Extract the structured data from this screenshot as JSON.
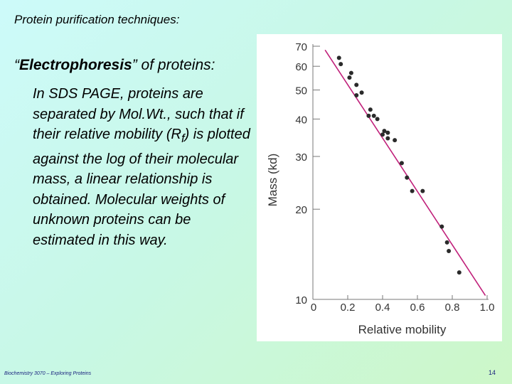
{
  "slide": {
    "title": "Protein purification techniques:",
    "heading_bold": "Electrophoresis",
    "heading_open_quote": "“",
    "heading_rest": "” of proteins:",
    "body_part1": "In SDS PAGE, proteins are separated by Mol.Wt., such that if their relative mobility (R",
    "body_subscript": "f",
    "body_part2": ") is plotted against the log of their molecular mass, a linear relationship is obtained.  Molecular weights of unknown proteins can be estimated in this way.",
    "footer_left": "Biochemistry 3070 – Exploring Proteins",
    "page_number": "14"
  },
  "colors": {
    "accent_line": "#c0207a",
    "points": "#2a2a2a",
    "axis_text": "#333333"
  },
  "chart_data": {
    "type": "scatter",
    "title": "",
    "xlabel": "Relative mobility",
    "ylabel": "Mass (kd)",
    "xlim": [
      0,
      1.0
    ],
    "ylim": [
      10,
      70
    ],
    "y_scale": "log",
    "x_tick_labels": [
      "0",
      "0.2",
      "0.4",
      "0.6",
      "0.8",
      "1.0"
    ],
    "x_ticks": [
      0,
      0.2,
      0.4,
      0.6,
      0.8,
      1.0
    ],
    "y_tick_labels": [
      "10",
      "20",
      "30",
      "40",
      "50",
      "60",
      "70"
    ],
    "y_ticks": [
      10,
      20,
      30,
      40,
      50,
      60,
      70
    ],
    "grid": false,
    "fit_line": {
      "x": [
        0.07,
        0.99
      ],
      "y": [
        68,
        10.3
      ]
    },
    "points": [
      {
        "x": 0.15,
        "y": 64
      },
      {
        "x": 0.16,
        "y": 61
      },
      {
        "x": 0.21,
        "y": 55
      },
      {
        "x": 0.22,
        "y": 57
      },
      {
        "x": 0.25,
        "y": 52
      },
      {
        "x": 0.25,
        "y": 48
      },
      {
        "x": 0.28,
        "y": 49
      },
      {
        "x": 0.32,
        "y": 41
      },
      {
        "x": 0.33,
        "y": 43
      },
      {
        "x": 0.35,
        "y": 41
      },
      {
        "x": 0.37,
        "y": 40
      },
      {
        "x": 0.4,
        "y": 35.5
      },
      {
        "x": 0.41,
        "y": 36.5
      },
      {
        "x": 0.43,
        "y": 34.5
      },
      {
        "x": 0.43,
        "y": 36
      },
      {
        "x": 0.47,
        "y": 34
      },
      {
        "x": 0.51,
        "y": 28.5
      },
      {
        "x": 0.54,
        "y": 25.5
      },
      {
        "x": 0.57,
        "y": 23
      },
      {
        "x": 0.63,
        "y": 23
      },
      {
        "x": 0.74,
        "y": 17.5
      },
      {
        "x": 0.77,
        "y": 15.5
      },
      {
        "x": 0.78,
        "y": 14.5
      },
      {
        "x": 0.84,
        "y": 12.3
      }
    ]
  }
}
